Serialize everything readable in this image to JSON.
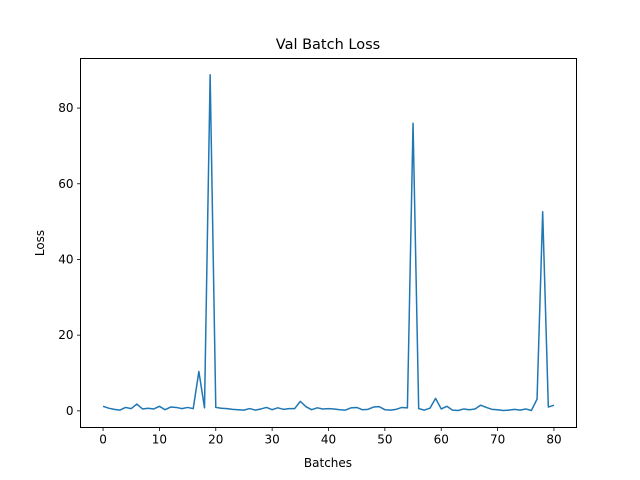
{
  "chart_data": {
    "type": "line",
    "title": "Val Batch Loss",
    "xlabel": "Batches",
    "ylabel": "Loss",
    "xlim": [
      -4,
      84
    ],
    "ylim": [
      -4.4,
      93.1
    ],
    "xticks": [
      0,
      10,
      20,
      30,
      40,
      50,
      60,
      70,
      80
    ],
    "yticks": [
      0,
      20,
      40,
      60,
      80
    ],
    "grid": false,
    "color": "#1f77b4",
    "series": [
      {
        "x": [
          0,
          1,
          2,
          3,
          4,
          5,
          6,
          7,
          8,
          9,
          10,
          11,
          12,
          13,
          14,
          15,
          16,
          17,
          18,
          19,
          20,
          21,
          22,
          23,
          24,
          25,
          26,
          27,
          28,
          29,
          30,
          31,
          32,
          33,
          34,
          35,
          36,
          37,
          38,
          39,
          40,
          41,
          42,
          43,
          44,
          45,
          46,
          47,
          48,
          49,
          50,
          51,
          52,
          53,
          54,
          55,
          56,
          57,
          58,
          59,
          60,
          61,
          62,
          63,
          64,
          65,
          66,
          67,
          68,
          69,
          70,
          71,
          72,
          73,
          74,
          75,
          76,
          77,
          78,
          79,
          80
        ],
        "values": [
          1.2,
          0.7,
          0.4,
          0.2,
          0.9,
          0.6,
          1.8,
          0.5,
          0.7,
          0.5,
          1.2,
          0.3,
          1.0,
          0.9,
          0.6,
          0.9,
          0.6,
          10.4,
          0.8,
          88.8,
          0.9,
          0.7,
          0.6,
          0.4,
          0.3,
          0.2,
          0.6,
          0.2,
          0.5,
          0.9,
          0.3,
          0.8,
          0.4,
          0.6,
          0.6,
          2.5,
          1.1,
          0.3,
          0.8,
          0.5,
          0.6,
          0.5,
          0.3,
          0.2,
          0.8,
          0.9,
          0.3,
          0.4,
          1.0,
          1.1,
          0.3,
          0.2,
          0.4,
          0.9,
          0.8,
          76.0,
          0.6,
          0.2,
          0.7,
          3.3,
          0.5,
          1.2,
          0.2,
          0.1,
          0.5,
          0.3,
          0.5,
          1.5,
          0.9,
          0.4,
          0.3,
          0.1,
          0.2,
          0.4,
          0.2,
          0.5,
          0.1,
          3.1,
          52.6,
          1.0,
          1.5
        ]
      }
    ]
  }
}
